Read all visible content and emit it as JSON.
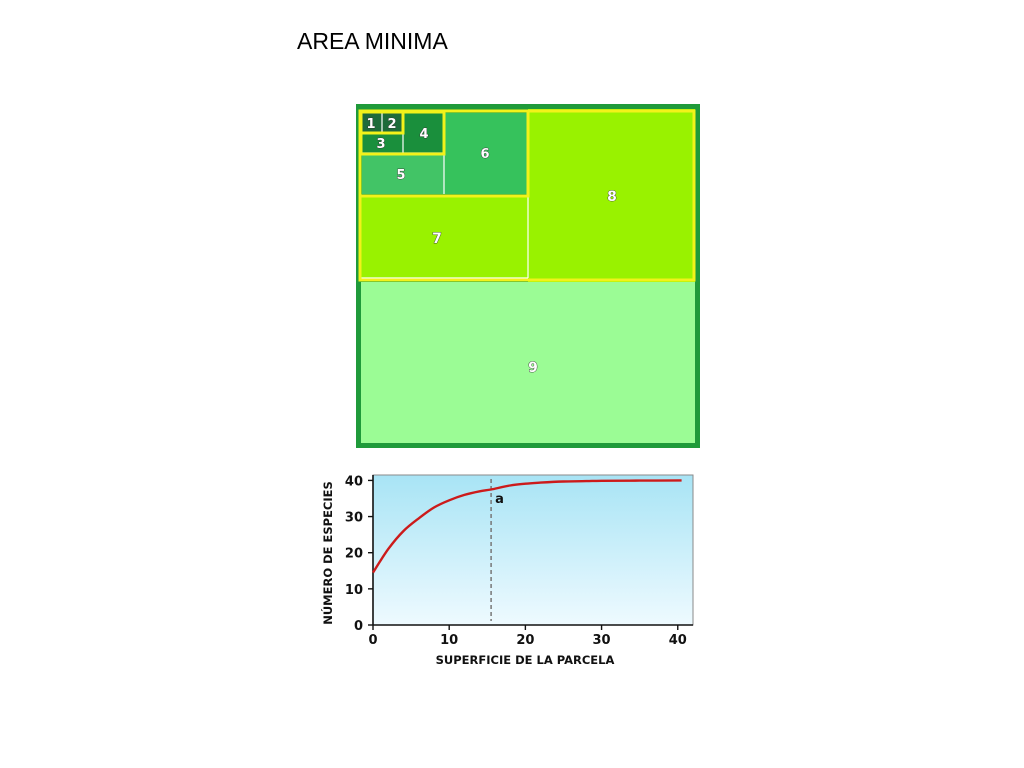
{
  "slide": {
    "title": "AREA MINIMA"
  },
  "diagram": {
    "colors": {
      "frame": "#1f9a3a",
      "highlight": "#f2f21a",
      "plot1": "#1e6b3a",
      "plot2": "#1e6b3a",
      "plot3": "#1a8f3c",
      "plot4": "#1a8f3c",
      "plot5": "#42c466",
      "plot6": "#36c25c",
      "plot7": "#99f200",
      "plot8": "#99f200",
      "plot9": "#9bfc95"
    },
    "plots": [
      {
        "label": "1"
      },
      {
        "label": "2"
      },
      {
        "label": "3"
      },
      {
        "label": "4"
      },
      {
        "label": "5"
      },
      {
        "label": "6"
      },
      {
        "label": "7"
      },
      {
        "label": "8"
      },
      {
        "label": "9"
      }
    ]
  },
  "chart_data": {
    "type": "line",
    "xlabel": "SUPERFICIE DE LA PARCELA",
    "ylabel": "NÚMERO DE ESPECIES",
    "xlim": [
      0,
      42
    ],
    "ylim": [
      0,
      41.5
    ],
    "xticks": [
      "0",
      "10",
      "20",
      "30",
      "40"
    ],
    "yticks": [
      "0",
      "10",
      "20",
      "30",
      "40"
    ],
    "line_color": "#cc1b1b",
    "background_gradient": [
      "#a8e4f5",
      "#eefaff"
    ],
    "series": [
      {
        "x": [
          0,
          2,
          4,
          6,
          8,
          10,
          12,
          14,
          15.5,
          18,
          20,
          22,
          25,
          28,
          30,
          35,
          40.5
        ],
        "values": [
          14.5,
          21,
          26,
          29.5,
          32.5,
          34.5,
          36,
          37,
          37.5,
          38.6,
          39.1,
          39.4,
          39.7,
          39.8,
          39.9,
          39.95,
          40
        ]
      }
    ],
    "annotation": {
      "label": "a",
      "x": 15.5
    }
  }
}
